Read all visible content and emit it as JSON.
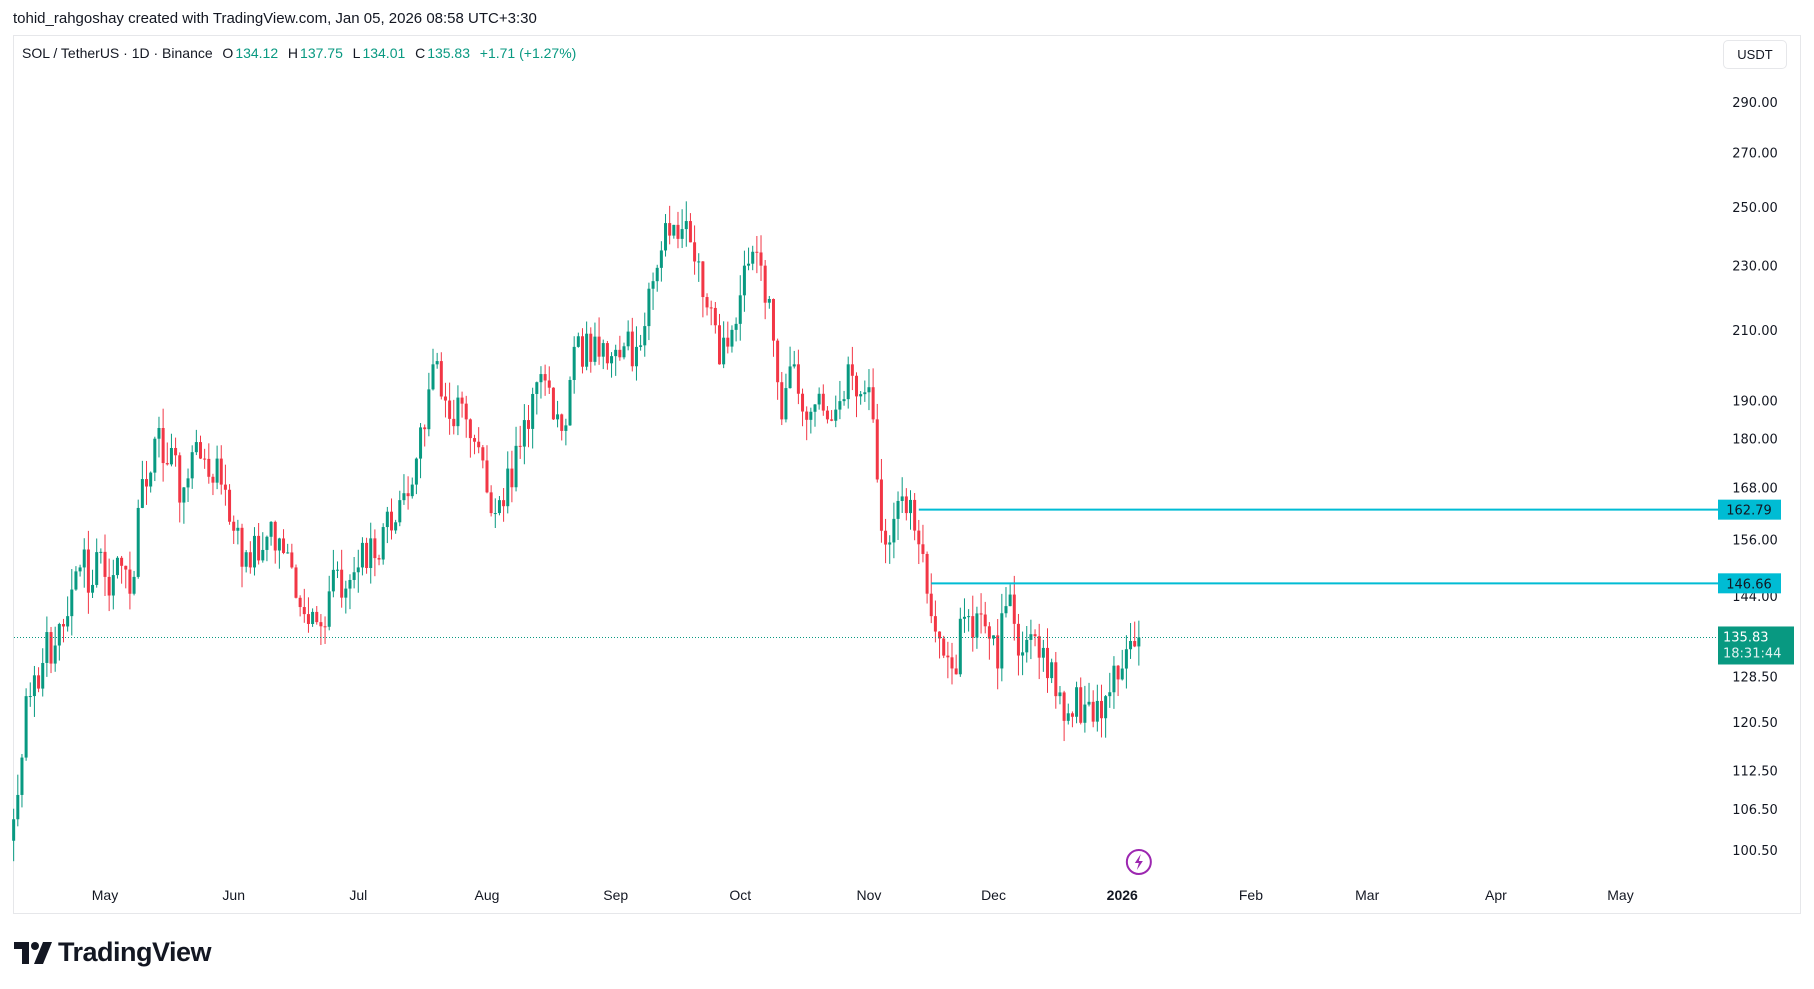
{
  "credit": "tohid_rahgoshay created with TradingView.com, Jan 05, 2026 08:58 UTC+3:30",
  "legend": {
    "symbol": "SOL / TetherUS · 1D · Binance",
    "o_label": "O",
    "o": "134.12",
    "h_label": "H",
    "h": "137.75",
    "l_label": "L",
    "l": "134.01",
    "c_label": "C",
    "c": "135.83",
    "change": "+1.71 (+1.27%)"
  },
  "currency": "USDT",
  "brand": "TradingView",
  "colors": {
    "up": "#089981",
    "down": "#f23645",
    "level": "#00bcd4",
    "last": "#089981",
    "event": "#9c27b0"
  },
  "chart_data": {
    "type": "candlestick",
    "scale": "log",
    "ylim": [
      98,
      300
    ],
    "y_ticks": [
      "290.00",
      "270.00",
      "250.00",
      "230.00",
      "210.00",
      "190.00",
      "180.00",
      "168.00",
      "156.00",
      "144.00",
      "128.50",
      "120.50",
      "112.50",
      "106.50",
      "100.50"
    ],
    "x_ticks": [
      {
        "label": "May",
        "date": "2025-05-01"
      },
      {
        "label": "Jun",
        "date": "2025-06-01"
      },
      {
        "label": "Jul",
        "date": "2025-07-01"
      },
      {
        "label": "Aug",
        "date": "2025-08-01"
      },
      {
        "label": "Sep",
        "date": "2025-09-01"
      },
      {
        "label": "Oct",
        "date": "2025-10-01"
      },
      {
        "label": "Nov",
        "date": "2025-11-01"
      },
      {
        "label": "Dec",
        "date": "2025-12-01"
      },
      {
        "label": "2026",
        "date": "2026-01-01",
        "bold": true
      },
      {
        "label": "Feb",
        "date": "2026-02-01"
      },
      {
        "label": "Mar",
        "date": "2026-03-01"
      },
      {
        "label": "Apr",
        "date": "2026-04-01"
      },
      {
        "label": "May",
        "date": "2026-05-01"
      }
    ],
    "close_keypoints": [
      [
        "2025-04-09",
        105
      ],
      [
        "2025-04-12",
        125
      ],
      [
        "2025-04-22",
        140
      ],
      [
        "2025-04-25",
        150
      ],
      [
        "2025-05-01",
        148
      ],
      [
        "2025-05-08",
        148
      ],
      [
        "2025-05-10",
        170
      ],
      [
        "2025-05-13",
        180
      ],
      [
        "2025-05-20",
        168
      ],
      [
        "2025-05-24",
        175
      ],
      [
        "2025-05-28",
        175
      ],
      [
        "2025-06-01",
        158
      ],
      [
        "2025-06-05",
        150
      ],
      [
        "2025-06-10",
        160
      ],
      [
        "2025-06-15",
        150
      ],
      [
        "2025-06-22",
        138
      ],
      [
        "2025-06-24",
        145
      ],
      [
        "2025-07-01",
        150
      ],
      [
        "2025-07-05",
        152
      ],
      [
        "2025-07-11",
        165
      ],
      [
        "2025-07-15",
        175
      ],
      [
        "2025-07-19",
        200
      ],
      [
        "2025-07-22",
        190
      ],
      [
        "2025-07-27",
        185
      ],
      [
        "2025-08-02",
        162
      ],
      [
        "2025-08-04",
        165
      ],
      [
        "2025-08-09",
        178
      ],
      [
        "2025-08-13",
        195
      ],
      [
        "2025-08-17",
        185
      ],
      [
        "2025-08-19",
        182
      ],
      [
        "2025-08-22",
        205
      ],
      [
        "2025-08-27",
        208
      ],
      [
        "2025-09-02",
        202
      ],
      [
        "2025-09-06",
        205
      ],
      [
        "2025-09-10",
        225
      ],
      [
        "2025-09-14",
        240
      ],
      [
        "2025-09-18",
        245
      ],
      [
        "2025-09-22",
        220
      ],
      [
        "2025-09-26",
        200
      ],
      [
        "2025-09-29",
        210
      ],
      [
        "2025-10-02",
        230
      ],
      [
        "2025-10-06",
        230
      ],
      [
        "2025-10-10",
        195
      ],
      [
        "2025-10-11",
        185
      ],
      [
        "2025-10-14",
        200
      ],
      [
        "2025-10-18",
        187
      ],
      [
        "2025-10-22",
        185
      ],
      [
        "2025-10-27",
        200
      ],
      [
        "2025-11-02",
        185
      ],
      [
        "2025-11-04",
        158
      ],
      [
        "2025-11-10",
        162
      ],
      [
        "2025-11-13",
        155
      ],
      [
        "2025-11-16",
        140
      ],
      [
        "2025-11-21",
        130
      ],
      [
        "2025-11-25",
        140
      ],
      [
        "2025-11-29",
        138
      ],
      [
        "2025-12-02",
        130
      ],
      [
        "2025-12-04",
        142
      ],
      [
        "2025-12-08",
        133
      ],
      [
        "2025-12-12",
        132
      ],
      [
        "2025-12-16",
        125
      ],
      [
        "2025-12-19",
        122
      ],
      [
        "2025-12-24",
        124
      ],
      [
        "2025-12-28",
        125
      ],
      [
        "2025-12-31",
        128
      ],
      [
        "2026-01-04",
        134.12
      ],
      [
        "2026-01-05",
        135.83
      ]
    ],
    "horizontal_levels": [
      {
        "price": 162.79,
        "label": "162.79",
        "from": "2025-11-13"
      },
      {
        "price": 146.66,
        "label": "146.66",
        "from": "2025-11-16"
      }
    ],
    "last_price": {
      "label": "135.83",
      "countdown": "18:31:44"
    },
    "event_marker": {
      "date": "2026-01-05",
      "icon": "lightning-icon"
    }
  }
}
